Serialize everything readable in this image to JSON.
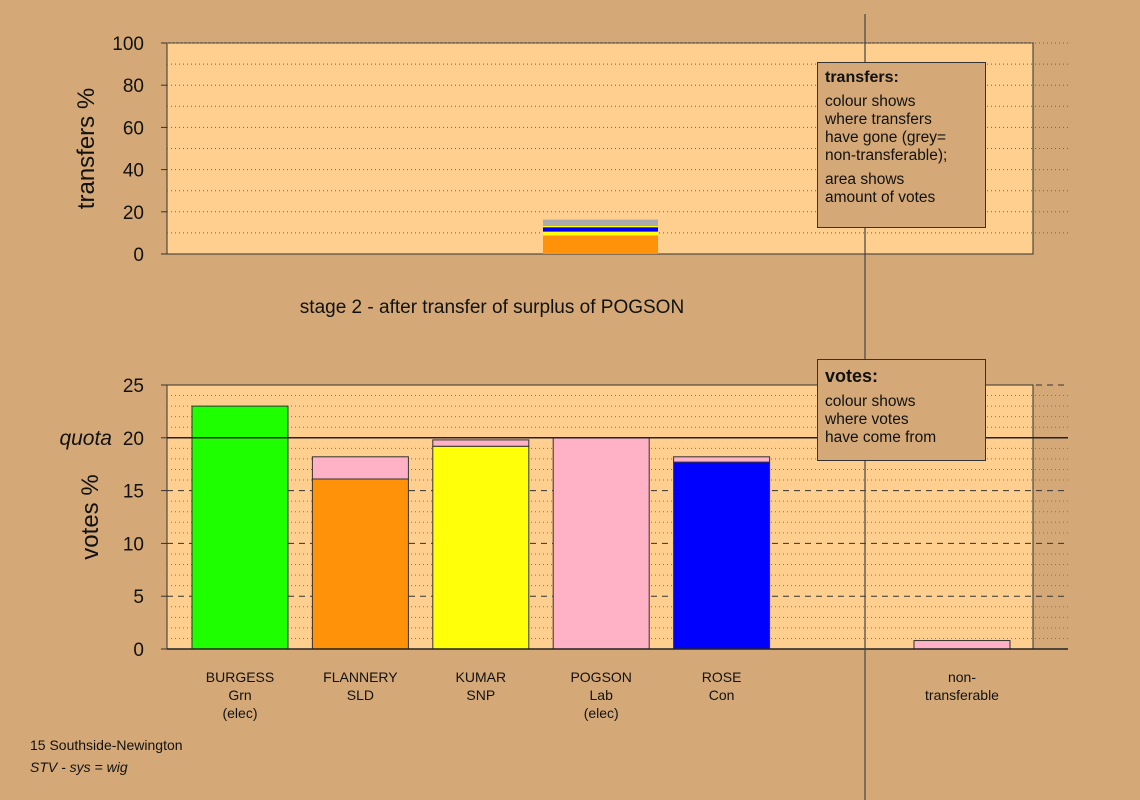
{
  "chart_data": {
    "type": "bar",
    "colors": {
      "background": "#d4a977",
      "plot_background": "#fecf8f",
      "Grn": "#1eff00",
      "SLD": "#ff9208",
      "SNP": "#ffff0a",
      "Lab": "#ffb1c6",
      "Con": "#0000ff",
      "non-transferable": "#aaaaaa"
    },
    "stage_title": "stage 2 - after transfer of surplus of POGSON",
    "transfers": {
      "ylabel": "transfers %",
      "ylim": [
        0,
        100
      ],
      "ticks": [
        "0",
        "20",
        "40",
        "60",
        "80",
        "100"
      ],
      "stack": [
        {
          "from": "SLD",
          "value": 8.8
        },
        {
          "from": "SNP",
          "value": 1.8
        },
        {
          "from": "Con",
          "value": 2.1
        },
        {
          "from": "SNP",
          "value": 0.6
        },
        {
          "from": "non-transferable",
          "value": 3.0
        }
      ],
      "legend": {
        "title": "transfers:",
        "lines": [
          "colour shows",
          "where transfers",
          "have gone (grey=",
          "non-transferable);"
        ],
        "lines2": [
          "area shows",
          "amount of votes"
        ]
      }
    },
    "votes": {
      "ylabel": "votes %",
      "ylim": [
        0,
        25
      ],
      "ticks": [
        "0",
        "5",
        "10",
        "15",
        "20",
        "25"
      ],
      "quota": 20,
      "quota_label": "quota",
      "candidates": [
        {
          "name": "BURGESS",
          "party": "Grn",
          "status": "(elec)",
          "segments": [
            {
              "party": "Grn",
              "value": 23.0
            }
          ]
        },
        {
          "name": "FLANNERY",
          "party": "SLD",
          "status": "",
          "segments": [
            {
              "party": "SLD",
              "value": 16.1
            },
            {
              "party": "Lab",
              "value": 2.1
            }
          ]
        },
        {
          "name": "KUMAR",
          "party": "SNP",
          "status": "",
          "segments": [
            {
              "party": "SNP",
              "value": 19.2
            },
            {
              "party": "Lab",
              "value": 0.6
            }
          ]
        },
        {
          "name": "POGSON",
          "party": "Lab",
          "status": "(elec)",
          "segments": [
            {
              "party": "Lab",
              "value": 20.0
            }
          ]
        },
        {
          "name": "ROSE",
          "party": "Con",
          "status": "",
          "segments": [
            {
              "party": "Con",
              "value": 17.7
            },
            {
              "party": "Lab",
              "value": 0.5
            }
          ]
        }
      ],
      "nontransferable": {
        "label1": "non-",
        "label2": "transferable",
        "segments": [
          {
            "party": "Lab",
            "value": 0.8
          }
        ]
      },
      "legend": {
        "title": "votes:",
        "lines": [
          "colour shows",
          "where votes",
          "have come from"
        ]
      }
    }
  },
  "footer": {
    "ward": "15 Southside-Newington",
    "system": "STV - sys = wig"
  }
}
